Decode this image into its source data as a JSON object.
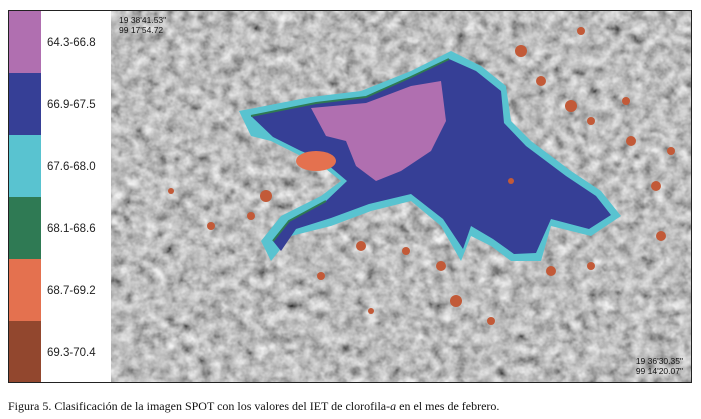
{
  "legend": {
    "items": [
      {
        "label": "64.3-66.8",
        "color": "#b06fb0"
      },
      {
        "label": "66.9-67.5",
        "color": "#363f96"
      },
      {
        "label": "67.6-68.0",
        "color": "#59c3d0"
      },
      {
        "label": "68.1-68.6",
        "color": "#2f7a54"
      },
      {
        "label": "68.7-69.2",
        "color": "#e4714f"
      },
      {
        "label": "69.3-70.4",
        "color": "#92472e"
      }
    ]
  },
  "map": {
    "coord_top_left": {
      "lat": "19 38'41.53\"",
      "lon": "99 17'54.72"
    },
    "coord_bottom_right": {
      "lat": "19 36'30.35\"",
      "lon": "99 14'20.07\""
    }
  },
  "caption": {
    "prefix": "Figura 5. Clasificación de la imagen SPOT con los valores del IET de clorofila-",
    "italic": "a",
    "suffix": " en el mes de febrero."
  }
}
